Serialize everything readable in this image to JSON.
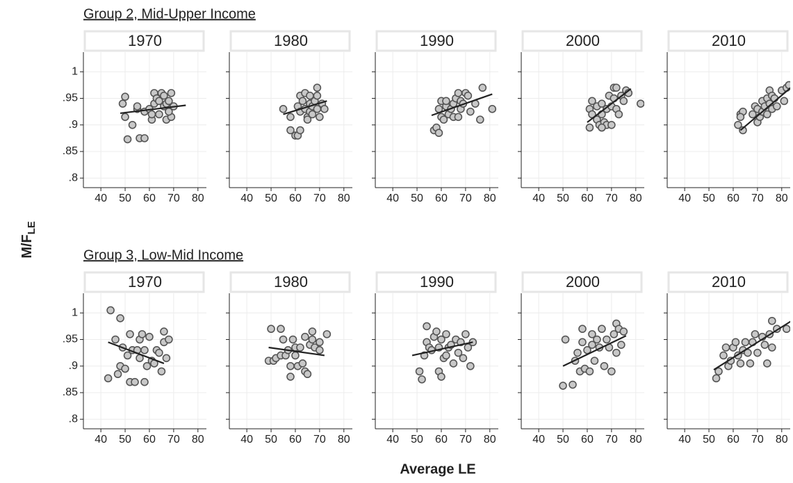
{
  "groups": [
    "Group 2, Mid-Upper Income",
    "Group 3, Low-Mid Income"
  ],
  "xlabel": "Average LE",
  "ylabel": "M/F",
  "ylabel_subscript": "LE",
  "chart_data": [
    {
      "type": "scatter",
      "title": "1970",
      "marker_color": "#c8c8c8",
      "line_color": "#222222",
      "grid": true,
      "xlim": [
        32.8,
        83.5
      ],
      "ylim": [
        0.782,
        1.037
      ],
      "xticks": [
        40,
        50,
        60,
        70,
        80
      ],
      "yticks": [
        {
          "value": 0.8,
          "label": ".8"
        },
        {
          "value": 0.85,
          "label": ".85"
        },
        {
          "value": 0.9,
          "label": ".9"
        },
        {
          "value": 0.95,
          "label": ".95"
        },
        1
      ],
      "x": [
        49,
        50,
        50,
        51,
        53,
        55,
        55,
        56,
        58,
        58,
        60,
        61,
        61,
        62,
        62,
        63,
        64,
        64,
        65,
        66,
        66,
        67,
        67,
        68,
        69,
        69,
        70,
        68
      ],
      "y": [
        0.94,
        0.953,
        0.915,
        0.873,
        0.9,
        0.93,
        0.935,
        0.875,
        0.875,
        0.925,
        0.93,
        0.91,
        0.92,
        0.96,
        0.94,
        0.95,
        0.92,
        0.945,
        0.96,
        0.955,
        0.935,
        0.91,
        0.94,
        0.945,
        0.96,
        0.915,
        0.935,
        0.925
      ],
      "trend": {
        "x": [
          48,
          75
        ],
        "y": [
          0.922,
          0.937
        ]
      }
    },
    {
      "type": "scatter",
      "title": "1980",
      "marker_color": "#c8c8c8",
      "line_color": "#222222",
      "grid": true,
      "xlim": [
        32.8,
        83.5
      ],
      "ylim": [
        0.782,
        1.037
      ],
      "xticks": [
        40,
        50,
        60,
        70,
        80
      ],
      "yticks": [
        {
          "value": 0.8,
          "label": ".8"
        },
        {
          "value": 0.85,
          "label": ".85"
        },
        {
          "value": 0.9,
          "label": ".9"
        },
        {
          "value": 0.95,
          "label": ".95"
        },
        1
      ],
      "x": [
        55,
        58,
        58,
        60,
        61,
        62,
        61,
        62,
        62,
        63,
        64,
        64,
        65,
        65,
        66,
        66,
        66,
        67,
        67,
        68,
        69,
        69,
        69,
        70,
        71,
        72
      ],
      "y": [
        0.93,
        0.915,
        0.89,
        0.88,
        0.88,
        0.89,
        0.935,
        0.955,
        0.925,
        0.945,
        0.96,
        0.93,
        0.915,
        0.91,
        0.955,
        0.94,
        0.925,
        0.935,
        0.92,
        0.945,
        0.955,
        0.97,
        0.93,
        0.915,
        0.94,
        0.93
      ],
      "trend": {
        "x": [
          55,
          73
        ],
        "y": [
          0.92,
          0.945
        ]
      }
    },
    {
      "type": "scatter",
      "title": "1990",
      "marker_color": "#c8c8c8",
      "line_color": "#222222",
      "grid": true,
      "xlim": [
        32.8,
        83.5
      ],
      "ylim": [
        0.782,
        1.037
      ],
      "xticks": [
        40,
        50,
        60,
        70,
        80
      ],
      "yticks": [
        {
          "value": 0.8,
          "label": ".8"
        },
        {
          "value": 0.85,
          "label": ".85"
        },
        {
          "value": 0.9,
          "label": ".9"
        },
        {
          "value": 0.95,
          "label": ".95"
        },
        1
      ],
      "x": [
        57,
        58,
        59,
        59,
        60,
        60,
        61,
        62,
        62,
        63,
        64,
        65,
        65,
        66,
        67,
        67,
        68,
        68,
        69,
        70,
        71,
        72,
        74,
        76,
        77,
        81
      ],
      "y": [
        0.89,
        0.895,
        0.885,
        0.93,
        0.945,
        0.915,
        0.91,
        0.935,
        0.945,
        0.92,
        0.93,
        0.915,
        0.94,
        0.95,
        0.96,
        0.915,
        0.945,
        0.93,
        0.94,
        0.96,
        0.955,
        0.925,
        0.94,
        0.91,
        0.97,
        0.93
      ],
      "trend": {
        "x": [
          56,
          81
        ],
        "y": [
          0.918,
          0.958
        ]
      }
    },
    {
      "type": "scatter",
      "title": "2000",
      "marker_color": "#c8c8c8",
      "line_color": "#222222",
      "grid": true,
      "xlim": [
        32.8,
        83.5
      ],
      "ylim": [
        0.782,
        1.037
      ],
      "xticks": [
        40,
        50,
        60,
        70,
        80
      ],
      "yticks": [
        {
          "value": 0.8,
          "label": ".8"
        },
        {
          "value": 0.85,
          "label": ".85"
        },
        {
          "value": 0.9,
          "label": ".9"
        },
        {
          "value": 0.95,
          "label": ".95"
        },
        1
      ],
      "x": [
        61,
        61,
        62,
        62,
        64,
        64,
        65,
        66,
        66,
        67,
        68,
        68,
        69,
        70,
        70,
        71,
        71,
        72,
        72,
        73,
        74,
        75,
        76,
        77,
        82,
        66
      ],
      "y": [
        0.895,
        0.93,
        0.945,
        0.92,
        0.935,
        0.91,
        0.9,
        0.92,
        0.94,
        0.905,
        0.9,
        0.93,
        0.955,
        0.935,
        0.9,
        0.97,
        0.95,
        0.97,
        0.93,
        0.92,
        0.955,
        0.945,
        0.965,
        0.96,
        0.94,
        0.895
      ],
      "trend": {
        "x": [
          60,
          78
        ],
        "y": [
          0.905,
          0.968
        ]
      }
    },
    {
      "type": "scatter",
      "title": "2010",
      "marker_color": "#c8c8c8",
      "line_color": "#222222",
      "grid": true,
      "xlim": [
        32.8,
        83.5
      ],
      "ylim": [
        0.782,
        1.037
      ],
      "xticks": [
        40,
        50,
        60,
        70,
        80
      ],
      "yticks": [
        {
          "value": 0.8,
          "label": ".8"
        },
        {
          "value": 0.85,
          "label": ".85"
        },
        {
          "value": 0.9,
          "label": ".9"
        },
        {
          "value": 0.95,
          "label": ".95"
        },
        1
      ],
      "x": [
        62,
        63,
        64,
        64,
        63,
        68,
        69,
        70,
        70,
        71,
        72,
        72,
        73,
        74,
        74,
        75,
        75,
        76,
        76,
        77,
        78,
        80,
        81,
        82,
        83
      ],
      "y": [
        0.9,
        0.92,
        0.925,
        0.89,
        0.915,
        0.92,
        0.935,
        0.93,
        0.905,
        0.915,
        0.945,
        0.925,
        0.935,
        0.95,
        0.92,
        0.965,
        0.94,
        0.955,
        0.93,
        0.95,
        0.935,
        0.965,
        0.945,
        0.97,
        0.975
      ],
      "trend": {
        "x": [
          63,
          85
        ],
        "y": [
          0.89,
          0.975
        ]
      }
    },
    {
      "type": "scatter",
      "title": "1970",
      "marker_color": "#c8c8c8",
      "line_color": "#222222",
      "grid": true,
      "xlim": [
        32.8,
        83.5
      ],
      "ylim": [
        0.782,
        1.037
      ],
      "xticks": [
        40,
        50,
        60,
        70,
        80
      ],
      "yticks": [
        {
          "value": 0.8,
          "label": ".8"
        },
        {
          "value": 0.85,
          "label": ".85"
        },
        {
          "value": 0.9,
          "label": ".9"
        },
        {
          "value": 0.95,
          "label": ".95"
        },
        1
      ],
      "x": [
        43,
        44,
        46,
        47,
        48,
        48,
        49,
        50,
        51,
        52,
        52,
        53,
        54,
        55,
        56,
        56,
        57,
        58,
        58,
        59,
        60,
        61,
        62,
        63,
        64,
        65,
        66,
        66,
        67,
        68
      ],
      "y": [
        0.877,
        1.005,
        0.95,
        0.885,
        0.9,
        0.99,
        0.935,
        0.895,
        0.92,
        0.96,
        0.87,
        0.93,
        0.87,
        0.93,
        0.95,
        0.915,
        0.96,
        0.87,
        0.93,
        0.9,
        0.955,
        0.91,
        0.905,
        0.93,
        0.925,
        0.89,
        0.945,
        0.965,
        0.915,
        0.95
      ],
      "trend": {
        "x": [
          43,
          66
        ],
        "y": [
          0.945,
          0.905
        ]
      }
    },
    {
      "type": "scatter",
      "title": "1980",
      "marker_color": "#c8c8c8",
      "line_color": "#222222",
      "grid": true,
      "xlim": [
        32.8,
        83.5
      ],
      "ylim": [
        0.782,
        1.037
      ],
      "xticks": [
        40,
        50,
        60,
        70,
        80
      ],
      "yticks": [
        {
          "value": 0.8,
          "label": ".8"
        },
        {
          "value": 0.85,
          "label": ".85"
        },
        {
          "value": 0.9,
          "label": ".9"
        },
        {
          "value": 0.95,
          "label": ".95"
        },
        1
      ],
      "x": [
        49,
        50,
        51,
        52,
        54,
        54,
        55,
        56,
        57,
        58,
        58,
        59,
        60,
        60,
        61,
        62,
        63,
        64,
        64,
        65,
        66,
        67,
        67,
        68,
        70,
        70,
        73
      ],
      "y": [
        0.91,
        0.97,
        0.91,
        0.915,
        0.97,
        0.92,
        0.95,
        0.92,
        0.93,
        0.88,
        0.9,
        0.95,
        0.92,
        0.935,
        0.9,
        0.935,
        0.905,
        0.89,
        0.955,
        0.885,
        0.94,
        0.95,
        0.965,
        0.935,
        0.945,
        0.93,
        0.96
      ],
      "trend": {
        "x": [
          49,
          72
        ],
        "y": [
          0.935,
          0.92
        ]
      }
    },
    {
      "type": "scatter",
      "title": "1990",
      "marker_color": "#c8c8c8",
      "line_color": "#222222",
      "grid": true,
      "xlim": [
        32.8,
        83.5
      ],
      "ylim": [
        0.782,
        1.037
      ],
      "xticks": [
        40,
        50,
        60,
        70,
        80
      ],
      "yticks": [
        {
          "value": 0.8,
          "label": ".8"
        },
        {
          "value": 0.85,
          "label": ".85"
        },
        {
          "value": 0.9,
          "label": ".9"
        },
        {
          "value": 0.95,
          "label": ".95"
        },
        1
      ],
      "x": [
        51,
        52,
        53,
        54,
        54,
        55,
        56,
        57,
        58,
        59,
        59,
        60,
        60,
        61,
        62,
        62,
        63,
        64,
        65,
        66,
        67,
        68,
        69,
        70,
        71,
        72,
        73
      ],
      "y": [
        0.89,
        0.875,
        0.92,
        0.945,
        0.975,
        0.935,
        0.93,
        0.955,
        0.965,
        0.89,
        0.935,
        0.88,
        0.95,
        0.915,
        0.92,
        0.96,
        0.935,
        0.94,
        0.905,
        0.95,
        0.925,
        0.945,
        0.915,
        0.96,
        0.935,
        0.9,
        0.945
      ],
      "trend": {
        "x": [
          48,
          73
        ],
        "y": [
          0.92,
          0.945
        ]
      }
    },
    {
      "type": "scatter",
      "title": "2000",
      "marker_color": "#c8c8c8",
      "line_color": "#222222",
      "grid": true,
      "xlim": [
        32.8,
        83.5
      ],
      "ylim": [
        0.782,
        1.037
      ],
      "xticks": [
        40,
        50,
        60,
        70,
        80
      ],
      "yticks": [
        {
          "value": 0.8,
          "label": ".8"
        },
        {
          "value": 0.85,
          "label": ".85"
        },
        {
          "value": 0.9,
          "label": ".9"
        },
        {
          "value": 0.95,
          "label": ".95"
        },
        1
      ],
      "x": [
        50,
        51,
        54,
        55,
        56,
        57,
        58,
        58,
        59,
        60,
        61,
        62,
        62,
        63,
        64,
        65,
        66,
        67,
        68,
        69,
        70,
        71,
        72,
        72,
        73,
        74,
        75
      ],
      "y": [
        0.863,
        0.95,
        0.865,
        0.91,
        0.925,
        0.89,
        0.97,
        0.945,
        0.895,
        0.93,
        0.89,
        0.94,
        0.96,
        0.91,
        0.95,
        0.935,
        0.97,
        0.9,
        0.95,
        0.935,
        0.89,
        0.96,
        0.98,
        0.925,
        0.97,
        0.94,
        0.965
      ],
      "trend": {
        "x": [
          50,
          76
        ],
        "y": [
          0.9,
          0.957
        ]
      }
    },
    {
      "type": "scatter",
      "title": "2010",
      "marker_color": "#c8c8c8",
      "line_color": "#222222",
      "grid": true,
      "xlim": [
        32.8,
        83.5
      ],
      "ylim": [
        0.782,
        1.037
      ],
      "xticks": [
        40,
        50,
        60,
        70,
        80
      ],
      "yticks": [
        {
          "value": 0.8,
          "label": ".8"
        },
        {
          "value": 0.85,
          "label": ".85"
        },
        {
          "value": 0.9,
          "label": ".9"
        },
        {
          "value": 0.95,
          "label": ".95"
        },
        1
      ],
      "x": [
        53,
        54,
        56,
        57,
        58,
        59,
        60,
        61,
        62,
        63,
        64,
        65,
        66,
        67,
        68,
        69,
        70,
        72,
        73,
        74,
        75,
        76,
        76,
        78,
        82
      ],
      "y": [
        0.877,
        0.89,
        0.92,
        0.935,
        0.9,
        0.91,
        0.935,
        0.945,
        0.92,
        0.905,
        0.93,
        0.945,
        0.925,
        0.905,
        0.945,
        0.96,
        0.925,
        0.955,
        0.94,
        0.905,
        0.96,
        0.985,
        0.935,
        0.97,
        0.97
      ],
      "trend": {
        "x": [
          52,
          84
        ],
        "y": [
          0.893,
          0.985
        ]
      }
    }
  ]
}
